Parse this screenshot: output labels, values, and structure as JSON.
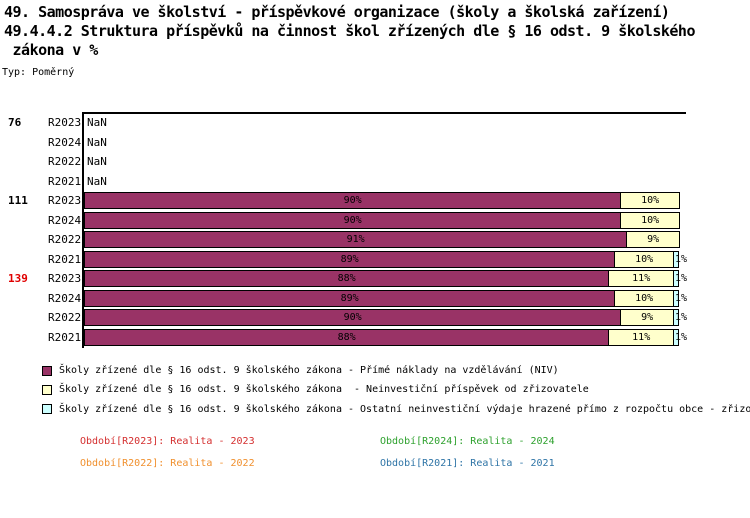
{
  "header": {
    "title_line1": "49. Samospráva ve školství - příspěvkové organizace (školy a školská zařízení)",
    "title_line2": "49.4.4.2 Struktura příspěvků na činnost škol zřízených dle § 16 odst. 9 školského",
    "title_line3": " zákona v %",
    "type_label": "Typ: Poměrný"
  },
  "chart_data": {
    "type": "bar",
    "stacked": true,
    "orientation": "horizontal",
    "unit": "%",
    "xlim": [
      0,
      100
    ],
    "nan_text": "NaN",
    "segment_colors": [
      "#993366",
      "#FFFFCC",
      "#CCFFFF"
    ],
    "segment_names": [
      "Přímé náklady na vzdělávání (NIV)",
      "Neinvestiční příspěvek od zřizovatele",
      "Ostatní neinvestiční výdaje hrazené přímo z rozpočtu obce"
    ],
    "groups": [
      {
        "label": "76",
        "label_color": "#000000",
        "rows": [
          {
            "period": "R2023",
            "value": "NaN"
          },
          {
            "period": "R2024",
            "value": "NaN"
          },
          {
            "period": "R2022",
            "value": "NaN"
          },
          {
            "period": "R2021",
            "value": "NaN"
          }
        ]
      },
      {
        "label": "111",
        "label_color": "#000000",
        "rows": [
          {
            "period": "R2023",
            "segments": [
              90,
              10
            ]
          },
          {
            "period": "R2024",
            "segments": [
              90,
              10
            ]
          },
          {
            "period": "R2022",
            "segments": [
              91,
              9
            ]
          },
          {
            "period": "R2021",
            "segments": [
              89,
              10,
              1
            ]
          }
        ]
      },
      {
        "label": "139",
        "label_color": "#E00000",
        "rows": [
          {
            "period": "R2023",
            "segments": [
              88,
              11,
              1
            ]
          },
          {
            "period": "R2024",
            "segments": [
              89,
              10,
              1
            ]
          },
          {
            "period": "R2022",
            "segments": [
              90,
              9,
              1
            ]
          },
          {
            "period": "R2021",
            "segments": [
              88,
              11,
              1
            ]
          }
        ]
      }
    ]
  },
  "legend": {
    "items": [
      {
        "color": "#993366",
        "label": "Školy zřízené dle § 16 odst. 9 školského zákona - Přímé náklady na vzdělávání (NIV)"
      },
      {
        "color": "#FFFFCC",
        "label": "Školy zřízené dle § 16 odst. 9 školského zákona  - Neinvestiční příspěvek od zřizovatele"
      },
      {
        "color": "#CCFFFF",
        "label": "Školy zřízené dle § 16 odst. 9 školského zákona - Ostatní neinvestiční výdaje hrazené přímo z rozpočtu obce - zřizo"
      }
    ]
  },
  "periods_legend": [
    {
      "label": "Období[R2023]: Realita - 2023",
      "color": "#D42F2F",
      "col": 0,
      "row": 0
    },
    {
      "label": "Období[R2024]: Realita - 2024",
      "color": "#2EA12E",
      "col": 1,
      "row": 0
    },
    {
      "label": "Období[R2022]: Realita - 2022",
      "color": "#F0902E",
      "col": 0,
      "row": 1
    },
    {
      "label": "Období[R2021]: Realita - 2021",
      "color": "#2E74A6",
      "col": 1,
      "row": 1
    }
  ]
}
